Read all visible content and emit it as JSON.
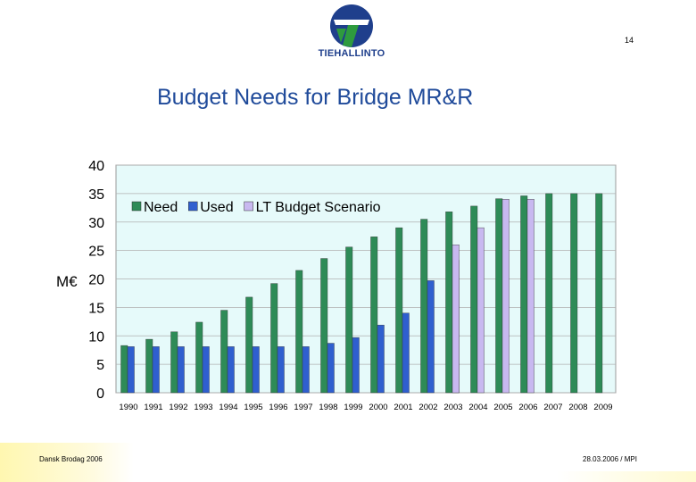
{
  "header": {
    "logo_text": "TIEHALLINTO",
    "page_number": "14",
    "title": "Budget Needs for Bridge MR&R"
  },
  "footer": {
    "left_text": "Dansk Brodag 2006",
    "right_text": "28.03.2006 / MPI"
  },
  "colors": {
    "need": "#2e8b57",
    "used": "#2f5fcf",
    "lt": "#c8b8f0",
    "plot_bg": "#e6fafa",
    "title": "#1f4a9a"
  },
  "chart_data": {
    "type": "bar",
    "title": "Budget Needs for Bridge MR&R",
    "ylabel": "M€",
    "xlabel": "",
    "ylim": [
      0,
      40
    ],
    "yticks": [
      0,
      5,
      10,
      15,
      20,
      25,
      30,
      35,
      40
    ],
    "grid": true,
    "legend_position": "top-left",
    "categories": [
      "1990",
      "1991",
      "1992",
      "1993",
      "1994",
      "1995",
      "1996",
      "1997",
      "1998",
      "1999",
      "2000",
      "2001",
      "2002",
      "2003",
      "2004",
      "2005",
      "2006",
      "2007",
      "2008",
      "2009"
    ],
    "series": [
      {
        "name": "Need",
        "color_key": "need",
        "values": [
          8.3,
          9.4,
          10.7,
          12.4,
          14.5,
          16.8,
          19.2,
          21.5,
          23.6,
          25.6,
          27.4,
          29.0,
          30.5,
          31.8,
          32.8,
          34.1,
          34.6,
          35.0,
          35.0,
          35.0
        ]
      },
      {
        "name": "Used",
        "color_key": "used",
        "values": [
          8.1,
          8.1,
          8.1,
          8.1,
          8.1,
          8.1,
          8.1,
          8.1,
          8.7,
          9.7,
          11.9,
          14.0,
          19.7,
          23.3,
          null,
          null,
          null,
          null,
          null,
          null
        ]
      },
      {
        "name": "LT Budget Scenario",
        "color_key": "lt",
        "values": [
          null,
          null,
          null,
          null,
          null,
          null,
          null,
          null,
          null,
          null,
          null,
          null,
          null,
          26.0,
          29.0,
          34.0,
          34.0,
          null,
          null,
          null
        ]
      }
    ]
  }
}
